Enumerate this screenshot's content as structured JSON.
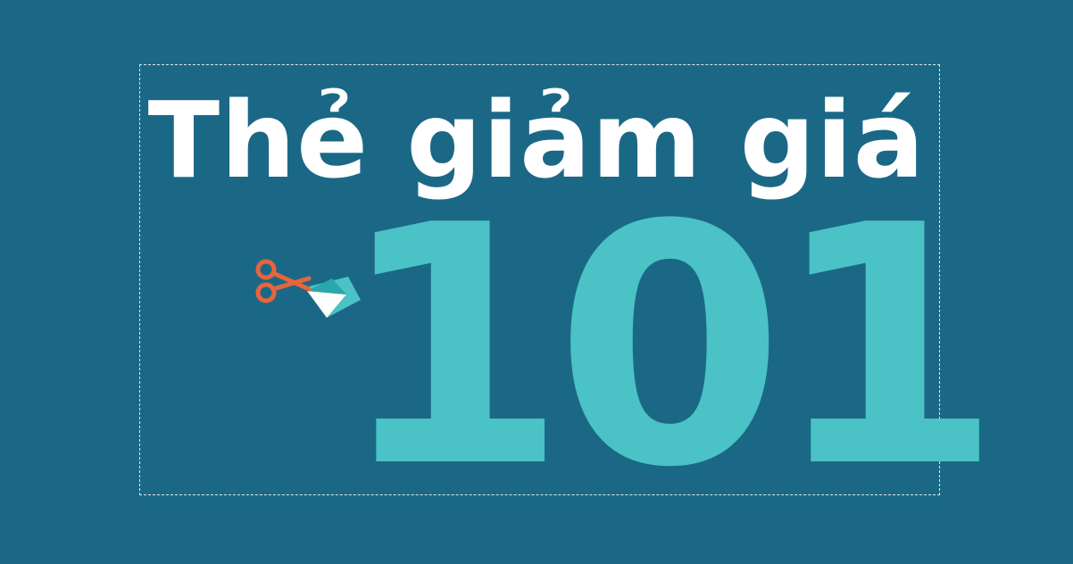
{
  "banner": {
    "title": "Thẻ giảm giá",
    "number": "101",
    "icon": "scissors-cutting-coupon-icon"
  },
  "colors": {
    "background": "#1b6886",
    "title": "#ffffff",
    "number": "#4bc2c5",
    "scissors": "#e8643c",
    "paper_fold": "#ffffff"
  }
}
